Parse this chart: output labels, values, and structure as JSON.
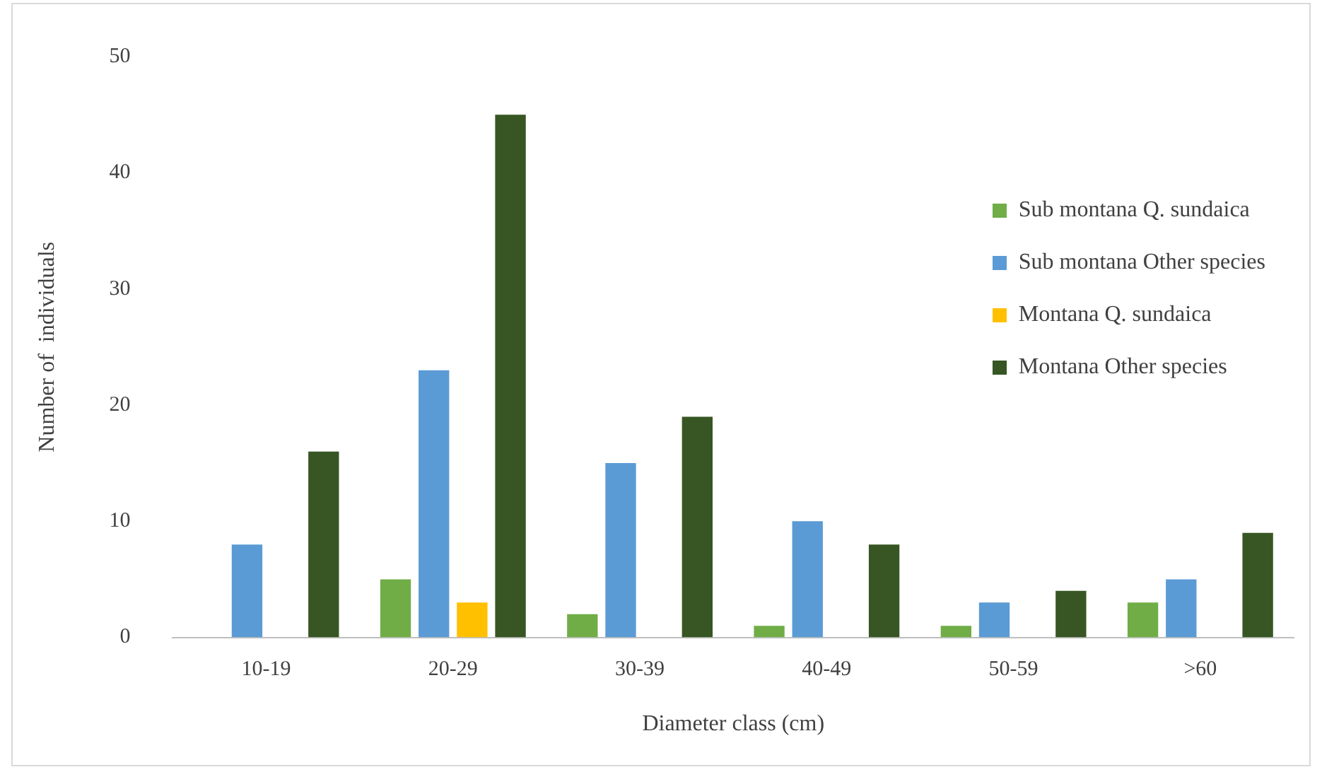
{
  "chart_data": {
    "type": "bar",
    "xlabel": "Diameter class (cm)",
    "ylabel": "Number of  individuals",
    "categories": [
      "10-19",
      "20-29",
      "30-39",
      "40-49",
      "50-59",
      ">60"
    ],
    "series": [
      {
        "name": "Sub montana Q. sundaica",
        "color": "#70ad47",
        "values": [
          0,
          5,
          2,
          1,
          1,
          3
        ]
      },
      {
        "name": "Sub montana Other species",
        "color": "#5b9bd5",
        "values": [
          8,
          23,
          15,
          10,
          3,
          5
        ]
      },
      {
        "name": "Montana Q. sundaica",
        "color": "#ffc000",
        "values": [
          0,
          3,
          0,
          0,
          0,
          0
        ]
      },
      {
        "name": "Montana Other species",
        "color": "#375623",
        "values": [
          16,
          45,
          19,
          8,
          4,
          9
        ]
      }
    ],
    "ylim": [
      0,
      50
    ],
    "yticks": [
      0,
      10,
      20,
      30,
      40,
      50
    ],
    "grid": false,
    "legend": "top right"
  }
}
